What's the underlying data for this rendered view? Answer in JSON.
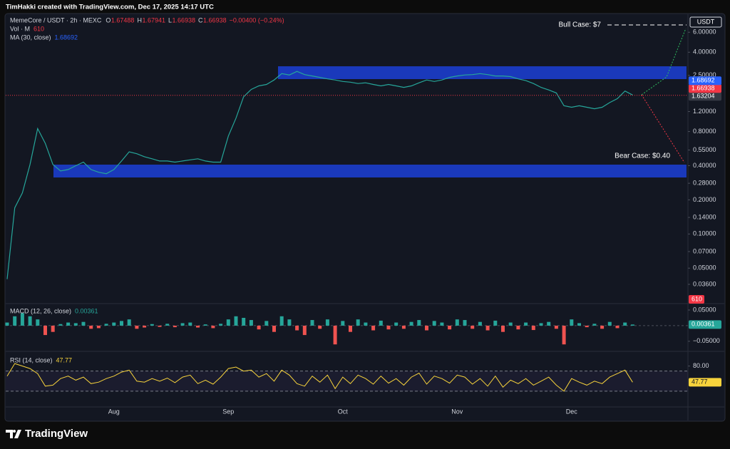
{
  "header": "TimHakki created with TradingView.com, Dec 17, 2025 14:17 UTC",
  "footer": "TradingView",
  "chart_data": [
    {
      "type": "line",
      "title": "MemeCore / USDT · 2h · MEXC",
      "ohlc_labels": [
        "O",
        "H",
        "L",
        "C"
      ],
      "ohlc": [
        1.67488,
        1.67941,
        1.66938,
        1.66938
      ],
      "change": "−0.00400 (−0.24%)",
      "volume": {
        "name": "Vol · M",
        "value": 610
      },
      "ma": {
        "name": "MA (30, close)",
        "value": 1.68692,
        "color": "#2962ff"
      },
      "marker_price": 1.63204,
      "currency": "USDT",
      "annotations": [
        "Bull Case: $7",
        "Bear Case: $0.40"
      ],
      "log_scale": true,
      "grid": false,
      "color": "#26a69a",
      "ylim": [
        0.0247,
        8.4
      ],
      "yticks": [
        {
          "value": 6,
          "label": "6.00000"
        },
        {
          "value": 4,
          "label": "4.00000"
        },
        {
          "value": 2.5,
          "label": "2.50000"
        },
        {
          "value": 1.2,
          "label": "1.20000"
        },
        {
          "value": 0.8,
          "label": "0.80000"
        },
        {
          "value": 0.55,
          "label": "0.55000"
        },
        {
          "value": 0.4,
          "label": "0.40000"
        },
        {
          "value": 0.28,
          "label": "0.28000"
        },
        {
          "value": 0.2,
          "label": "0.20000"
        },
        {
          "value": 0.14,
          "label": "0.14000"
        },
        {
          "value": 0.1,
          "label": "0.10000"
        },
        {
          "value": 0.07,
          "label": "0.07000"
        },
        {
          "value": 0.05,
          "label": "0.05000"
        },
        {
          "value": 0.036,
          "label": "0.03600"
        }
      ],
      "categories": [
        null,
        null,
        null,
        null,
        null,
        null,
        null,
        null,
        null,
        null,
        null,
        null,
        null,
        null,
        "Aug",
        null,
        null,
        null,
        null,
        null,
        null,
        null,
        null,
        null,
        null,
        null,
        null,
        null,
        null,
        "Sep",
        null,
        null,
        null,
        null,
        null,
        null,
        null,
        null,
        null,
        null,
        null,
        null,
        null,
        null,
        "Oct",
        null,
        null,
        null,
        null,
        null,
        null,
        null,
        null,
        null,
        null,
        null,
        null,
        null,
        null,
        "Nov",
        null,
        null,
        null,
        null,
        null,
        null,
        null,
        null,
        null,
        null,
        null,
        null,
        null,
        null,
        "Dec",
        null,
        null,
        null,
        null,
        null,
        null,
        null,
        null
      ],
      "values": [
        0.04,
        0.17,
        0.23,
        0.41,
        0.85,
        0.63,
        0.41,
        0.36,
        0.37,
        0.4,
        0.43,
        0.37,
        0.35,
        0.34,
        0.37,
        0.44,
        0.53,
        0.51,
        0.48,
        0.46,
        0.44,
        0.44,
        0.43,
        0.44,
        0.45,
        0.46,
        0.44,
        0.43,
        0.43,
        0.73,
        1.05,
        1.62,
        1.88,
        2.02,
        2.08,
        2.28,
        2.59,
        2.52,
        2.71,
        2.54,
        2.47,
        2.4,
        2.33,
        2.28,
        2.21,
        2.18,
        2.12,
        2.15,
        2.08,
        2.02,
        2.08,
        2.02,
        1.96,
        2.02,
        2.15,
        2.28,
        2.21,
        2.28,
        2.4,
        2.47,
        2.52,
        2.54,
        2.59,
        2.54,
        2.47,
        2.47,
        2.44,
        2.33,
        2.25,
        2.12,
        1.96,
        1.86,
        1.75,
        1.35,
        1.31,
        1.35,
        1.31,
        1.27,
        1.31,
        1.44,
        1.56,
        1.82,
        1.68
      ]
    },
    {
      "type": "histogram",
      "title": "MACD (12, 26, close)",
      "last": 0.00361,
      "colors": {
        "up": "#26a69a",
        "down": "#ef5350"
      },
      "ylim": [
        -0.08,
        0.066
      ],
      "yticks": [
        {
          "value": 0.05,
          "label": "0.05000"
        },
        {
          "value": -0.05,
          "label": "−0.05000"
        }
      ],
      "values": [
        0.01,
        0.03,
        0.04,
        0.03,
        0.02,
        -0.03,
        -0.02,
        0.005,
        0.01,
        0.008,
        0.012,
        -0.01,
        -0.008,
        0.006,
        0.01,
        0.015,
        0.02,
        -0.01,
        -0.006,
        0.005,
        -0.004,
        0.006,
        -0.005,
        0.008,
        0.01,
        -0.006,
        0.004,
        -0.008,
        0.006,
        0.02,
        0.03,
        0.025,
        0.018,
        -0.012,
        0.015,
        -0.02,
        0.03,
        0.02,
        -0.015,
        -0.03,
        0.018,
        -0.01,
        0.02,
        -0.06,
        0.015,
        -0.02,
        0.02,
        0.01,
        -0.015,
        0.016,
        -0.012,
        0.01,
        -0.01,
        0.012,
        0.018,
        -0.015,
        0.015,
        0.01,
        -0.012,
        0.02,
        0.018,
        -0.01,
        0.012,
        -0.015,
        0.016,
        -0.02,
        0.01,
        -0.012,
        0.01,
        -0.014,
        0.008,
        0.012,
        -0.01,
        -0.06,
        0.02,
        0.008,
        -0.005,
        0.006,
        -0.01,
        0.012,
        -0.008,
        0.01,
        0.00361
      ]
    },
    {
      "type": "line",
      "title": "RSI (14, close)",
      "last": 47.77,
      "color": "#f7d33c",
      "ylim": [
        0,
        105
      ],
      "bands": [
        30,
        70
      ],
      "yticks": [
        {
          "value": 80,
          "label": "80.00"
        }
      ],
      "values": [
        60,
        85,
        80,
        75,
        65,
        40,
        42,
        55,
        60,
        52,
        58,
        45,
        48,
        55,
        60,
        68,
        72,
        50,
        48,
        55,
        50,
        56,
        47,
        58,
        62,
        45,
        52,
        44,
        58,
        75,
        78,
        70,
        72,
        58,
        65,
        50,
        72,
        62,
        45,
        40,
        60,
        48,
        62,
        35,
        58,
        45,
        62,
        55,
        44,
        60,
        46,
        55,
        42,
        58,
        66,
        44,
        60,
        55,
        46,
        62,
        58,
        44,
        55,
        40,
        60,
        38,
        52,
        45,
        55,
        42,
        50,
        58,
        42,
        30,
        55,
        48,
        42,
        50,
        45,
        58,
        65,
        72,
        47.77
      ]
    }
  ]
}
